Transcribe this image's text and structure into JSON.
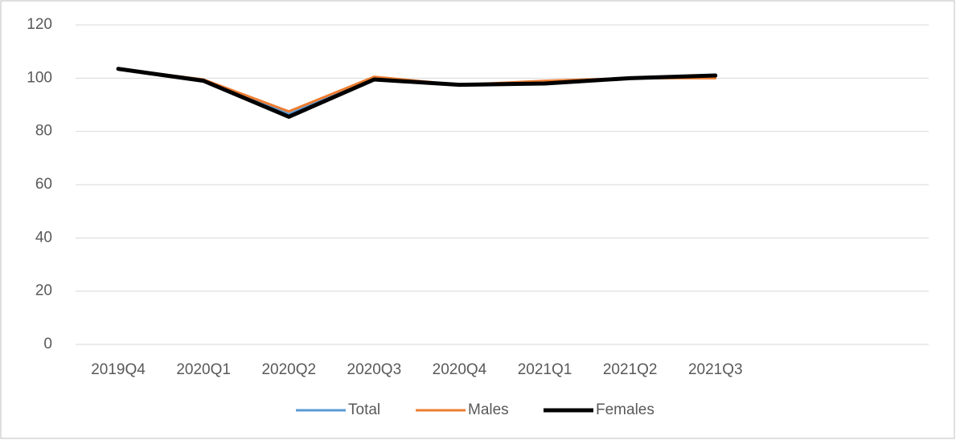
{
  "chart_data": {
    "type": "line",
    "categories": [
      "2019Q4",
      "2020Q1",
      "2020Q2",
      "2020Q3",
      "2020Q4",
      "2021Q1",
      "2021Q2",
      "2021Q3",
      null,
      null
    ],
    "series": [
      {
        "name": "Total",
        "color": "#5b9bd5",
        "values": [
          103.5,
          99.5,
          86.5,
          100,
          97.5,
          98.5,
          100,
          100.5,
          null,
          null
        ]
      },
      {
        "name": "Males",
        "color": "#ed7d31",
        "values": [
          103.5,
          99.5,
          87.5,
          100.5,
          97.5,
          99,
          100,
          100,
          null,
          null
        ]
      },
      {
        "name": "Females",
        "color": "#000000",
        "values": [
          103.5,
          99,
          85.5,
          99.5,
          97.5,
          98,
          100,
          101,
          null,
          null
        ]
      }
    ],
    "ylim": [
      0,
      120
    ],
    "yticks": [
      0,
      20,
      40,
      60,
      80,
      100,
      120
    ],
    "grid": true,
    "legend": "bottom"
  }
}
